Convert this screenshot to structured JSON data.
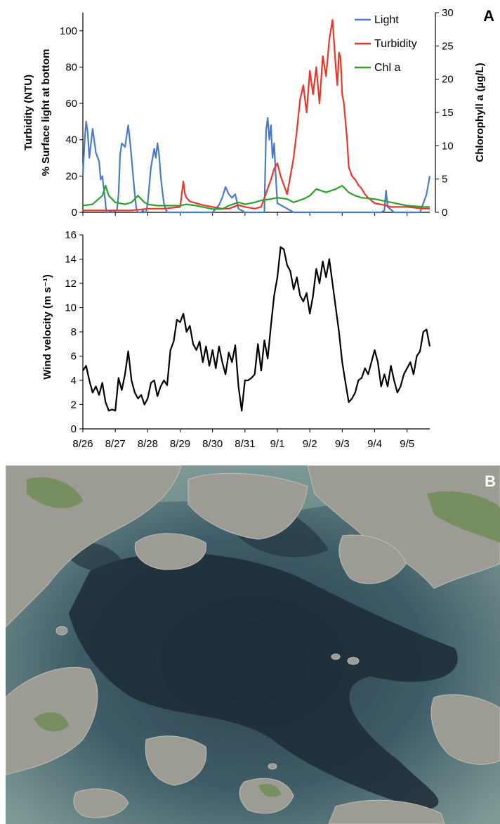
{
  "panel_a_label": "A",
  "panel_b_label": "B",
  "colors": {
    "light": "#4A7BC8",
    "turbidity": "#E8362A",
    "chl": "#2CA02C",
    "wind": "#000000",
    "water_dark": "#1E3040",
    "water_mid": "#3E5A66",
    "water_light": "#7C9592",
    "rock": "#9A9A92",
    "vegetation": "#6E8B52"
  },
  "photo_description": "Aerial photograph of a shallow archipelago bay with rocky islands",
  "chart_data": [
    {
      "type": "line",
      "title": "",
      "x_unit": "date",
      "xlim": [
        "8/26",
        "9/5 +0.3"
      ],
      "y_left_labels": [
        "Turbidity (NTU)",
        "% Surface light at  bottom"
      ],
      "y_left_ticks": [
        0,
        20,
        40,
        60,
        80,
        100
      ],
      "ylim": [
        0,
        110
      ],
      "y_right_label": "Chlorophyll a (µg/L)",
      "y_right_ticks": [
        0,
        5,
        10,
        15,
        20,
        25,
        30
      ],
      "y2lim": [
        0,
        30
      ],
      "legend": [
        "Light",
        "Turbidity",
        "Chl a"
      ],
      "legend_position": "top-right",
      "series": [
        {
          "name": "Light",
          "axis": "left",
          "x": [
            0,
            0.05,
            0.1,
            0.15,
            0.2,
            0.3,
            0.4,
            0.5,
            0.55,
            0.6,
            0.7,
            0.72,
            0.75,
            0.8,
            0.85,
            0.9,
            0.95,
            1,
            1.05,
            1.1,
            1.15,
            1.2,
            1.3,
            1.4,
            1.45,
            1.5,
            1.55,
            1.6,
            1.65,
            1.7,
            1.75,
            1.8,
            1.85,
            1.9,
            1.95,
            2,
            2.1,
            2.2,
            2.25,
            2.3,
            2.35,
            2.4,
            2.45,
            2.5,
            2.55,
            2.6,
            2.7,
            2.75,
            2.8,
            2.9,
            3,
            3.5,
            4,
            4.2,
            4.3,
            4.4,
            4.5,
            4.6,
            4.7,
            4.8,
            5,
            5.2,
            5.4,
            5.5,
            5.55,
            5.6,
            5.62,
            5.65,
            5.7,
            5.75,
            5.8,
            5.85,
            5.9,
            5.95,
            6,
            6.5,
            7,
            7.5,
            8,
            8.5,
            9,
            9.2,
            9.3,
            9.35,
            9.4,
            9.6,
            9.8,
            10,
            10.2,
            10.3,
            10.4,
            10.5,
            10.6,
            10.7
          ],
          "values": [
            20,
            38,
            50,
            44,
            30,
            46,
            33,
            28,
            18,
            20,
            5,
            0,
            0,
            0,
            1,
            0,
            0,
            1,
            1,
            10,
            32,
            38,
            36,
            48,
            40,
            30,
            20,
            10,
            2,
            0,
            0,
            0,
            1,
            0,
            0,
            5,
            25,
            35,
            30,
            38,
            32,
            20,
            12,
            5,
            2,
            0,
            0,
            0,
            0,
            0,
            0,
            0,
            0,
            4,
            8,
            14,
            10,
            8,
            10,
            2,
            0,
            0,
            0,
            0,
            0,
            0,
            20,
            45,
            52,
            40,
            48,
            30,
            38,
            20,
            5,
            0,
            0,
            0,
            0,
            0,
            0,
            0,
            1,
            12,
            3,
            0,
            0,
            0,
            0,
            0,
            0,
            5,
            10,
            20
          ]
        },
        {
          "name": "Turbidity",
          "axis": "left",
          "x": [
            0,
            0.5,
            1,
            1.5,
            2,
            2.5,
            3,
            3.05,
            3.1,
            3.15,
            3.2,
            3.3,
            3.5,
            3.7,
            4,
            4.3,
            4.5,
            4.8,
            5,
            5.3,
            5.5,
            5.8,
            5.9,
            6,
            6.1,
            6.2,
            6.3,
            6.4,
            6.5,
            6.6,
            6.7,
            6.8,
            6.9,
            7,
            7.1,
            7.2,
            7.3,
            7.4,
            7.5,
            7.6,
            7.7,
            7.8,
            7.85,
            7.9,
            7.95,
            8,
            8.05,
            8.1,
            8.15,
            8.2,
            8.3,
            8.4,
            8.5,
            8.6,
            8.7,
            8.8,
            9,
            9.3,
            9.5,
            10,
            10.5,
            10.7
          ],
          "values": [
            1,
            1,
            1,
            1,
            2,
            2,
            3,
            10,
            17,
            10,
            8,
            6,
            5,
            4,
            3,
            2,
            2,
            4,
            3,
            2,
            3,
            18,
            24,
            27,
            20,
            15,
            10,
            20,
            30,
            45,
            62,
            70,
            55,
            78,
            65,
            80,
            60,
            86,
            75,
            95,
            106,
            80,
            70,
            88,
            85,
            65,
            60,
            50,
            40,
            25,
            20,
            18,
            15,
            13,
            10,
            8,
            5,
            4,
            3,
            3,
            2,
            2
          ]
        },
        {
          "name": "Chl a",
          "axis": "right",
          "x": [
            0,
            0.3,
            0.6,
            0.7,
            0.8,
            1,
            1.3,
            1.5,
            1.7,
            1.9,
            2,
            2.3,
            2.5,
            2.7,
            3,
            3.2,
            3.5,
            3.7,
            4,
            4.3,
            4.5,
            4.8,
            5,
            5.3,
            5.5,
            5.8,
            6,
            6.3,
            6.5,
            6.8,
            7,
            7.2,
            7.5,
            7.8,
            8,
            8.2,
            8.4,
            8.6,
            9,
            9.5,
            10,
            10.5,
            10.7
          ],
          "values": [
            1,
            1.2,
            2.5,
            4,
            2.5,
            1.5,
            1.2,
            1.5,
            2.5,
            1.5,
            1.2,
            1,
            1,
            1,
            1,
            1.2,
            1,
            0.8,
            0.5,
            0.5,
            1,
            1.5,
            1.2,
            1.5,
            1.8,
            2,
            2.2,
            2,
            1.5,
            2,
            2.5,
            3.5,
            3,
            3.5,
            4,
            3,
            2.5,
            2.2,
            2,
            1.5,
            1,
            0.8,
            0.8
          ]
        }
      ]
    },
    {
      "type": "line",
      "title": "",
      "xlabel": "",
      "ylabel": "Wind velocity (m s⁻¹)",
      "categories": [
        "8/26",
        "8/27",
        "8/28",
        "8/29",
        "8/30",
        "8/31",
        "9/1",
        "9/2",
        "9/3",
        "9/4",
        "9/5"
      ],
      "y_ticks": [
        0,
        2,
        4,
        6,
        8,
        10,
        12,
        14,
        16
      ],
      "ylim": [
        0,
        16
      ],
      "series": [
        {
          "name": "Wind velocity",
          "x": [
            0,
            0.1,
            0.2,
            0.3,
            0.4,
            0.5,
            0.6,
            0.7,
            0.8,
            0.9,
            1,
            1.1,
            1.2,
            1.3,
            1.4,
            1.5,
            1.6,
            1.7,
            1.8,
            1.9,
            2,
            2.1,
            2.2,
            2.3,
            2.4,
            2.5,
            2.6,
            2.7,
            2.8,
            2.9,
            3,
            3.1,
            3.2,
            3.3,
            3.4,
            3.5,
            3.6,
            3.7,
            3.8,
            3.9,
            4,
            4.1,
            4.2,
            4.3,
            4.4,
            4.5,
            4.6,
            4.7,
            4.8,
            4.9,
            5,
            5.1,
            5.2,
            5.3,
            5.4,
            5.5,
            5.6,
            5.7,
            5.8,
            5.9,
            6,
            6.1,
            6.2,
            6.3,
            6.4,
            6.5,
            6.6,
            6.7,
            6.8,
            6.9,
            7,
            7.1,
            7.2,
            7.3,
            7.4,
            7.5,
            7.6,
            7.7,
            7.8,
            7.9,
            8,
            8.1,
            8.2,
            8.3,
            8.4,
            8.5,
            8.6,
            8.7,
            8.8,
            8.9,
            9,
            9.1,
            9.2,
            9.3,
            9.4,
            9.5,
            9.6,
            9.7,
            9.8,
            9.9,
            10,
            10.1,
            10.2,
            10.3,
            10.4,
            10.5,
            10.6,
            10.7
          ],
          "values": [
            4.8,
            5.2,
            4,
            3,
            3.5,
            2.8,
            3.8,
            2.2,
            1.5,
            1.6,
            1.5,
            4.2,
            3.2,
            4.5,
            6.4,
            4,
            3,
            2.5,
            2.8,
            2,
            2.5,
            3.8,
            4,
            2.7,
            3.5,
            4,
            3.6,
            6.5,
            7.2,
            9,
            8.8,
            9.5,
            8,
            8.5,
            7,
            6.5,
            7.2,
            5.5,
            6.8,
            5.2,
            6.5,
            5,
            6.8,
            5.5,
            4.5,
            6.3,
            5.5,
            6.9,
            3.5,
            1.5,
            4,
            4,
            4.2,
            4.5,
            7,
            4.8,
            7.3,
            5.8,
            8.5,
            11,
            12.5,
            15,
            14.8,
            13.5,
            13,
            11.5,
            12.5,
            11,
            10.5,
            11.2,
            9.5,
            11,
            13.2,
            12,
            13.8,
            12.5,
            14,
            12,
            10,
            8,
            5.5,
            3.8,
            2.2,
            2.5,
            3,
            4,
            4.2,
            5,
            4.5,
            5.5,
            6.5,
            5.5,
            3.5,
            4.5,
            3.5,
            5.2,
            4,
            3,
            3.5,
            4.5,
            5,
            5.5,
            4.5,
            6,
            6.4,
            8,
            8.2,
            6.8
          ]
        }
      ]
    }
  ]
}
